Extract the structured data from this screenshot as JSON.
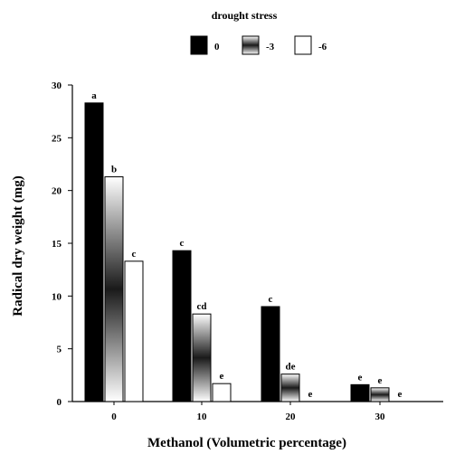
{
  "chart_data": {
    "type": "bar",
    "categories": [
      "0",
      "10",
      "20",
      "30"
    ],
    "xlabel": "Methanol (Volumetric percentage)",
    "ylabel": "Radical dry weight (mg)",
    "ylim": [
      0,
      30
    ],
    "yticks": [
      "0",
      "5",
      "10",
      "15",
      "20",
      "25",
      "30"
    ],
    "grid": false,
    "legend": {
      "title": "drought stress",
      "placement": "top-center"
    },
    "series": [
      {
        "name": "0",
        "style": "solid",
        "color": "#000000",
        "values": [
          28.3,
          14.3,
          9.0,
          1.6
        ],
        "labels": [
          "a",
          "c",
          "c",
          "e"
        ]
      },
      {
        "name": "-3",
        "style": "gradient-stripe",
        "color": "#888888",
        "values": [
          21.3,
          8.3,
          2.6,
          1.3
        ],
        "labels": [
          "b",
          "cd",
          "de",
          "e"
        ]
      },
      {
        "name": "-6",
        "style": "white",
        "color": "#ffffff",
        "values": [
          13.3,
          1.7,
          0.0,
          0.0
        ],
        "labels": [
          "c",
          "e",
          "e",
          "e"
        ]
      }
    ]
  }
}
